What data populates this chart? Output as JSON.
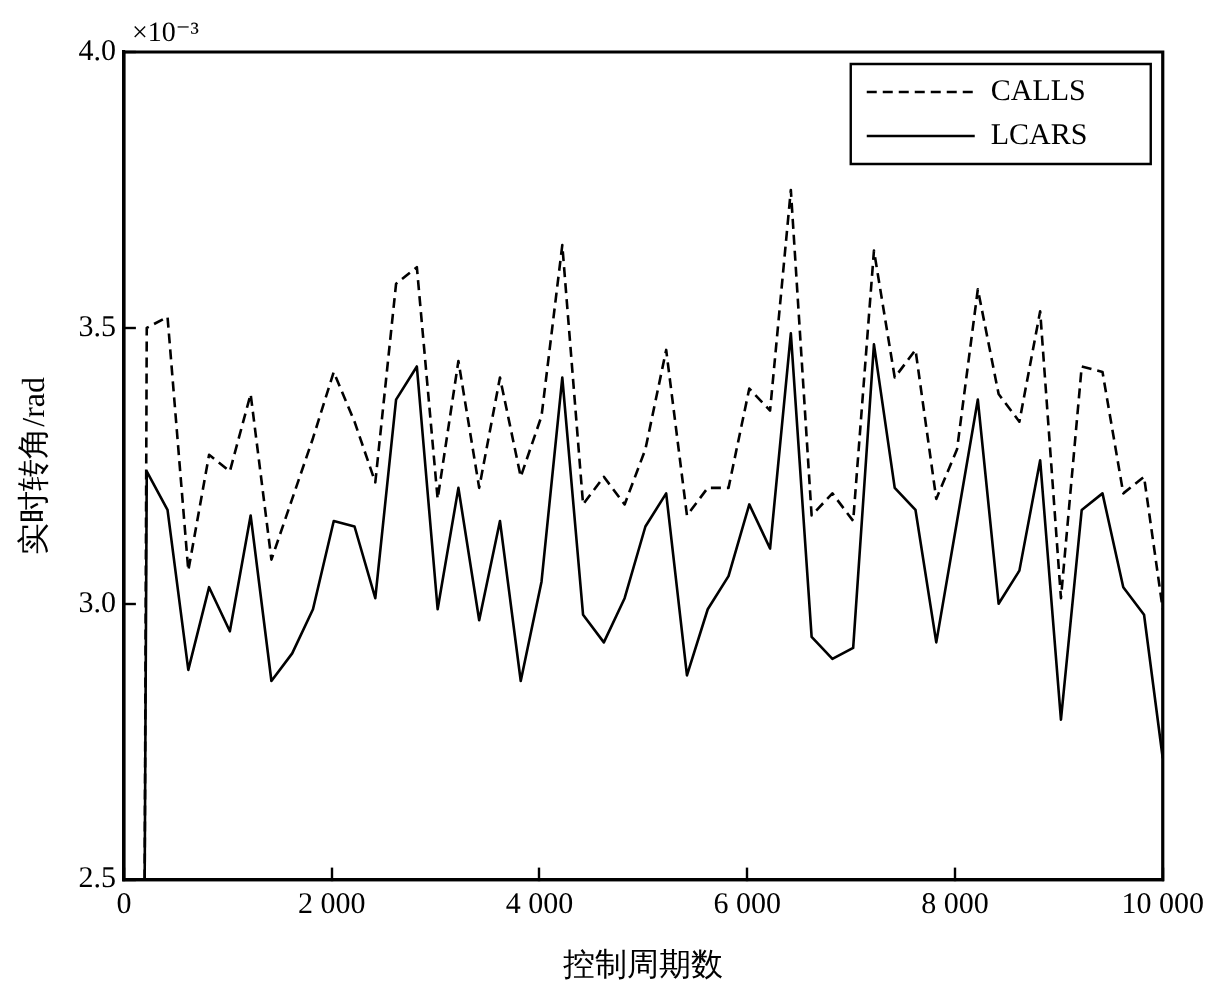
{
  "chart_data": {
    "type": "line",
    "xlabel": "控制周期数",
    "ylabel": "实时转角/rad",
    "annotations": [
      "×10⁻³"
    ],
    "x": [
      200,
      220,
      420,
      620,
      820,
      1020,
      1220,
      1420,
      1620,
      1820,
      2020,
      2220,
      2420,
      2620,
      2820,
      3020,
      3220,
      3420,
      3620,
      3820,
      4020,
      4220,
      4420,
      4620,
      4820,
      5020,
      5220,
      5420,
      5620,
      5820,
      6020,
      6220,
      6420,
      6620,
      6820,
      7020,
      7220,
      7420,
      7620,
      7820,
      8020,
      8220,
      8420,
      8620,
      8820,
      9020,
      9220,
      9420,
      9620,
      9820,
      10000
    ],
    "series": [
      {
        "name": "CALLS",
        "color": "#000000",
        "line_style": "dashed",
        "values": [
          2.5,
          3.5,
          3.52,
          3.06,
          3.27,
          3.24,
          3.38,
          3.08,
          3.19,
          3.3,
          3.42,
          3.33,
          3.22,
          3.58,
          3.61,
          3.19,
          3.44,
          3.21,
          3.41,
          3.23,
          3.34,
          3.65,
          3.18,
          3.23,
          3.18,
          3.28,
          3.46,
          3.16,
          3.21,
          3.21,
          3.39,
          3.35,
          3.75,
          3.16,
          3.2,
          3.15,
          3.64,
          3.41,
          3.46,
          3.19,
          3.28,
          3.57,
          3.38,
          3.33,
          3.53,
          3.01,
          3.43,
          3.42,
          3.2,
          3.23,
          2.99
        ]
      },
      {
        "name": "LCARS",
        "color": "#000000",
        "line_style": "solid",
        "values": [
          2.5,
          3.24,
          3.17,
          2.88,
          3.03,
          2.95,
          3.16,
          2.86,
          2.91,
          2.99,
          3.15,
          3.14,
          3.01,
          3.37,
          3.43,
          2.99,
          3.21,
          2.97,
          3.15,
          2.86,
          3.04,
          3.41,
          2.98,
          2.93,
          3.01,
          3.14,
          3.2,
          2.87,
          2.99,
          3.05,
          3.18,
          3.1,
          3.49,
          2.94,
          2.9,
          2.92,
          3.47,
          3.21,
          3.17,
          2.93,
          3.15,
          3.37,
          3.0,
          3.06,
          3.26,
          2.79,
          3.17,
          3.2,
          3.03,
          2.98,
          2.72
        ]
      }
    ],
    "xlim": [
      0,
      10000
    ],
    "xticks": [
      0,
      {
        "value": 2000,
        "label": "2 000"
      },
      {
        "value": 4000,
        "label": "4 000"
      },
      {
        "value": 6000,
        "label": "6 000"
      },
      {
        "value": 8000,
        "label": "8 000"
      },
      {
        "value": 10000,
        "label": "10 000"
      }
    ],
    "ylim": [
      2.5,
      4.0
    ],
    "yticks": [
      2.5,
      {
        "value": 3,
        "label": "3.0"
      },
      3.5,
      {
        "value": 4,
        "label": "4.0"
      }
    ],
    "legend": "top right",
    "grid": false,
    "marker": "none"
  }
}
